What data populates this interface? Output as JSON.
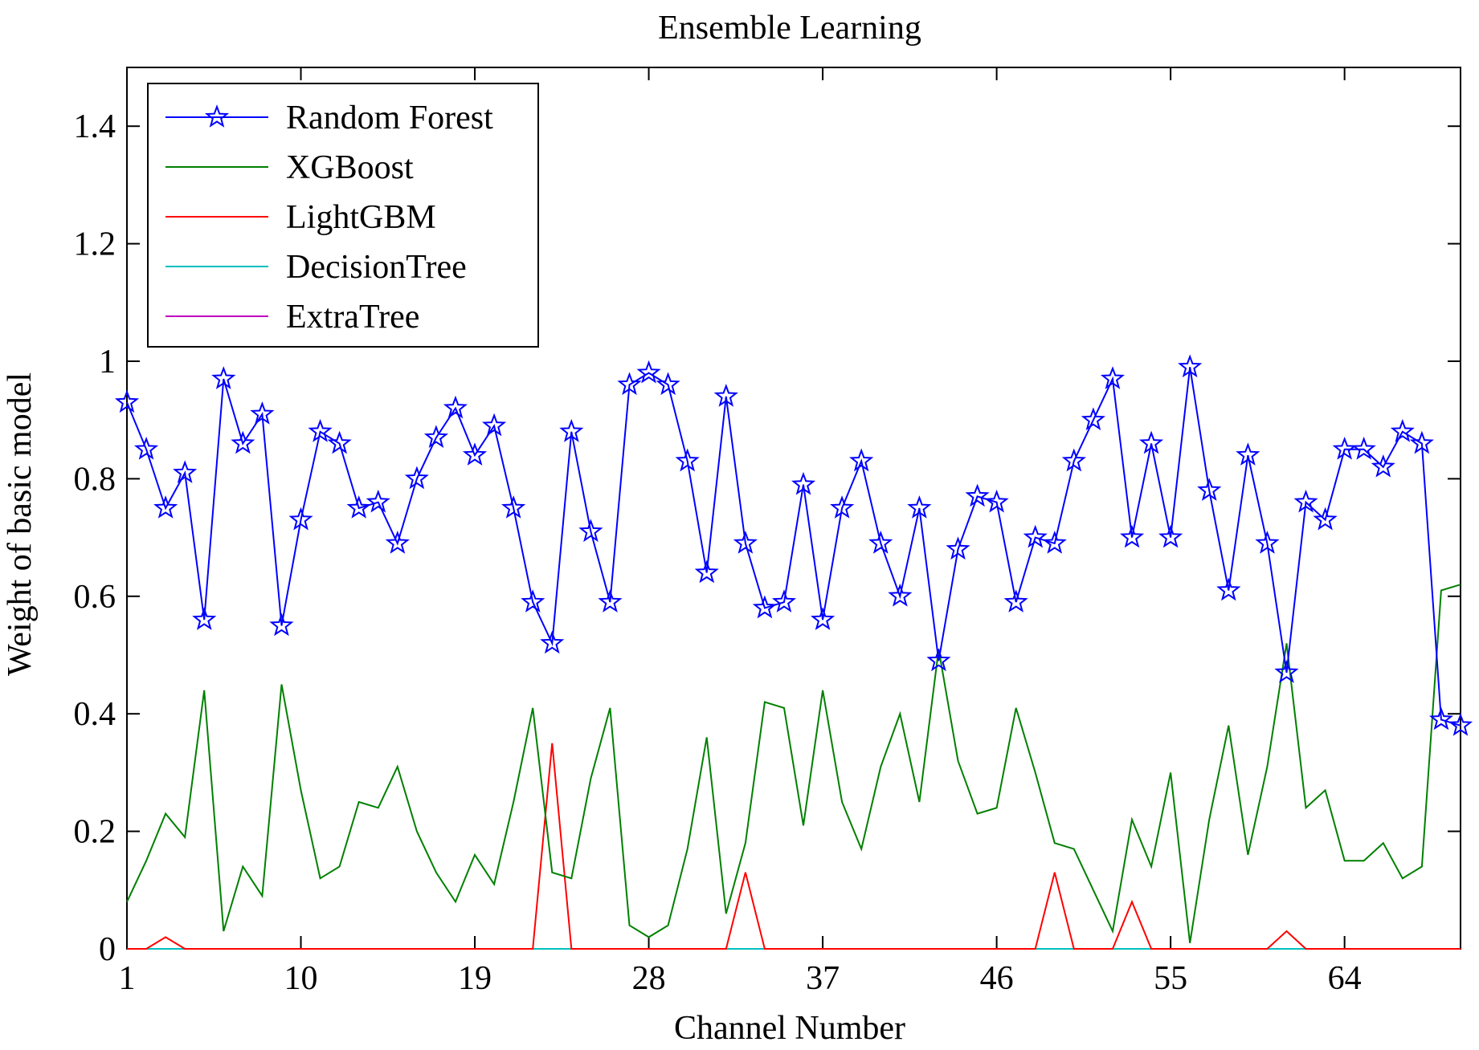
{
  "chart_data": {
    "type": "line",
    "title": "Ensemble Learning",
    "xlabel": "Channel Number",
    "ylabel": "Weight of basic model",
    "xlim": [
      1,
      70
    ],
    "ylim": [
      0,
      1.5
    ],
    "xticks": [
      1,
      10,
      19,
      28,
      37,
      46,
      55,
      64
    ],
    "yticks": [
      0,
      0.2,
      0.4,
      0.6,
      0.8,
      1,
      1.2,
      1.4
    ],
    "ytick_labels": [
      "0",
      "0.2",
      "0.4",
      "0.6",
      "0.8",
      "1",
      "1.2",
      "1.4"
    ],
    "grid": false,
    "legend_position": "top-left",
    "x": [
      1,
      2,
      3,
      4,
      5,
      6,
      7,
      8,
      9,
      10,
      11,
      12,
      13,
      14,
      15,
      16,
      17,
      18,
      19,
      20,
      21,
      22,
      23,
      24,
      25,
      26,
      27,
      28,
      29,
      30,
      31,
      32,
      33,
      34,
      35,
      36,
      37,
      38,
      39,
      40,
      41,
      42,
      43,
      44,
      45,
      46,
      47,
      48,
      49,
      50,
      51,
      52,
      53,
      54,
      55,
      56,
      57,
      58,
      59,
      60,
      61,
      62,
      63,
      64,
      65,
      66,
      67,
      68,
      69,
      70
    ],
    "series": [
      {
        "name": "Random Forest",
        "color": "#0000ff",
        "marker": "star",
        "values": [
          0.93,
          0.85,
          0.75,
          0.81,
          0.56,
          0.97,
          0.86,
          0.91,
          0.55,
          0.73,
          0.88,
          0.86,
          0.75,
          0.76,
          0.69,
          0.8,
          0.87,
          0.92,
          0.84,
          0.89,
          0.75,
          0.59,
          0.52,
          0.88,
          0.71,
          0.59,
          0.96,
          0.98,
          0.96,
          0.83,
          0.64,
          0.94,
          0.69,
          0.58,
          0.59,
          0.79,
          0.56,
          0.75,
          0.83,
          0.69,
          0.6,
          0.75,
          0.49,
          0.68,
          0.77,
          0.76,
          0.59,
          0.7,
          0.69,
          0.83,
          0.9,
          0.97,
          0.7,
          0.86,
          0.7,
          0.99,
          0.78,
          0.61,
          0.84,
          0.69,
          0.47,
          0.76,
          0.73,
          0.85,
          0.85,
          0.82,
          0.88,
          0.86,
          0.39,
          0.38
        ]
      },
      {
        "name": "XGBoost",
        "color": "#008000",
        "values": [
          0.08,
          0.15,
          0.23,
          0.19,
          0.44,
          0.03,
          0.14,
          0.09,
          0.45,
          0.27,
          0.12,
          0.14,
          0.25,
          0.24,
          0.31,
          0.2,
          0.13,
          0.08,
          0.16,
          0.11,
          0.25,
          0.41,
          0.13,
          0.12,
          0.29,
          0.41,
          0.04,
          0.02,
          0.04,
          0.17,
          0.36,
          0.06,
          0.18,
          0.42,
          0.41,
          0.21,
          0.44,
          0.25,
          0.17,
          0.31,
          0.4,
          0.25,
          0.51,
          0.32,
          0.23,
          0.24,
          0.41,
          0.3,
          0.18,
          0.17,
          0.1,
          0.03,
          0.22,
          0.14,
          0.3,
          0.01,
          0.22,
          0.38,
          0.16,
          0.31,
          0.52,
          0.24,
          0.27,
          0.15,
          0.15,
          0.18,
          0.12,
          0.14,
          0.61,
          0.62
        ]
      },
      {
        "name": "LightGBM",
        "color": "#ff0000",
        "values": [
          0,
          0,
          0.02,
          0,
          0,
          0,
          0,
          0,
          0,
          0,
          0,
          0,
          0,
          0,
          0,
          0,
          0,
          0,
          0,
          0,
          0,
          0,
          0.35,
          0,
          0,
          0,
          0,
          0,
          0,
          0,
          0,
          0,
          0.13,
          0,
          0,
          0,
          0,
          0,
          0,
          0,
          0,
          0,
          0,
          0,
          0,
          0,
          0,
          0,
          0.13,
          0,
          0,
          0,
          0.08,
          0,
          0,
          0,
          0,
          0,
          0,
          0,
          0.03,
          0,
          0,
          0,
          0,
          0,
          0,
          0,
          0,
          0
        ]
      },
      {
        "name": "DecisionTree",
        "color": "#00bfbf",
        "values": [
          0,
          0,
          0,
          0,
          0,
          0,
          0,
          0,
          0,
          0,
          0,
          0,
          0,
          0,
          0,
          0,
          0,
          0,
          0,
          0,
          0,
          0,
          0,
          0,
          0,
          0,
          0,
          0,
          0,
          0,
          0,
          0,
          0,
          0,
          0,
          0,
          0,
          0,
          0,
          0,
          0,
          0,
          0,
          0,
          0,
          0,
          0,
          0,
          0,
          0,
          0,
          0,
          0,
          0,
          0,
          0,
          0,
          0,
          0,
          0,
          0,
          0,
          0,
          0,
          0,
          0,
          0,
          0,
          0,
          0
        ]
      },
      {
        "name": "ExtraTree",
        "color": "#bf00bf",
        "values": [
          0,
          0,
          0,
          0,
          0,
          0,
          0,
          0,
          0,
          0,
          0,
          0,
          0,
          0,
          0,
          0,
          0,
          0,
          0,
          0,
          0,
          0,
          0,
          0,
          0,
          0,
          0,
          0,
          0,
          0,
          0,
          0,
          0,
          0,
          0,
          0,
          0,
          0,
          0,
          0,
          0,
          0,
          0,
          0,
          0,
          0,
          0,
          0,
          0,
          0,
          0,
          0,
          0,
          0,
          0,
          0,
          0,
          0,
          0,
          0,
          0,
          0,
          0,
          0,
          0,
          0,
          0,
          0,
          0,
          0
        ]
      }
    ]
  }
}
